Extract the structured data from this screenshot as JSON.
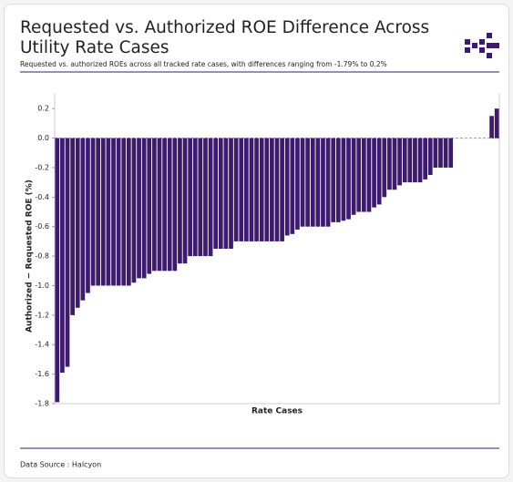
{
  "chart_data": {
    "type": "bar",
    "title": "Requested vs. Authorized ROE Difference Across Utility Rate Cases",
    "subtitle": "Requested vs. authorized ROEs across all tracked rate cases, with differences ranging from -1.79% to 0.2%",
    "x_label": "Rate Cases",
    "y_label": "Authorized − Requested ROE (%)",
    "source": "Data Source : Halcyon",
    "color": "#3d1a6b",
    "categories": [
      null,
      null,
      null,
      null,
      null,
      null,
      null,
      null,
      null,
      null,
      null,
      null,
      null,
      null,
      null,
      null,
      null,
      null,
      null,
      null,
      null,
      null,
      null,
      null,
      null,
      null,
      null,
      null,
      null,
      null,
      null,
      null,
      null,
      null,
      null,
      null,
      null,
      null,
      null,
      null,
      null,
      null,
      null,
      null,
      null,
      null,
      null,
      null,
      null,
      null,
      null,
      null,
      null,
      null,
      null,
      null,
      null,
      null,
      null,
      null,
      null,
      null,
      null,
      null,
      null,
      null,
      null,
      null,
      null,
      null,
      null,
      null,
      null,
      null,
      null,
      null,
      null,
      null,
      null,
      null,
      null,
      null,
      null,
      null,
      null,
      null,
      null
    ],
    "values": [
      -1.79,
      -1.59,
      -1.55,
      -1.2,
      -1.15,
      -1.1,
      -1.05,
      -1,
      -1,
      -1,
      -1,
      -1,
      -1,
      -1,
      -1,
      -0.98,
      -0.95,
      -0.95,
      -0.92,
      -0.9,
      -0.9,
      -0.9,
      -0.9,
      -0.9,
      -0.85,
      -0.85,
      -0.8,
      -0.8,
      -0.8,
      -0.8,
      -0.8,
      -0.75,
      -0.75,
      -0.75,
      -0.75,
      -0.7,
      -0.7,
      -0.7,
      -0.7,
      -0.7,
      -0.7,
      -0.7,
      -0.7,
      -0.7,
      -0.7,
      -0.66,
      -0.65,
      -0.62,
      -0.6,
      -0.6,
      -0.6,
      -0.6,
      -0.6,
      -0.6,
      -0.57,
      -0.57,
      -0.56,
      -0.55,
      -0.52,
      -0.5,
      -0.5,
      -0.5,
      -0.47,
      -0.45,
      -0.4,
      -0.35,
      -0.35,
      -0.32,
      -0.3,
      -0.3,
      -0.3,
      -0.3,
      -0.28,
      -0.25,
      -0.2,
      -0.2,
      -0.2,
      -0.2,
      0,
      0,
      0,
      0,
      0,
      0,
      0,
      0.15,
      0.2
    ],
    "ylim": [
      -1.8,
      0.3
    ],
    "yticks": [
      0.2,
      {
        "value": 0,
        "label": "0.0"
      },
      -0.2,
      -0.4,
      -0.6,
      -0.8,
      {
        "value": -1,
        "label": "-1.0"
      },
      -1.2,
      -1.4,
      -1.6,
      -1.8
    ],
    "zero_line": true
  }
}
